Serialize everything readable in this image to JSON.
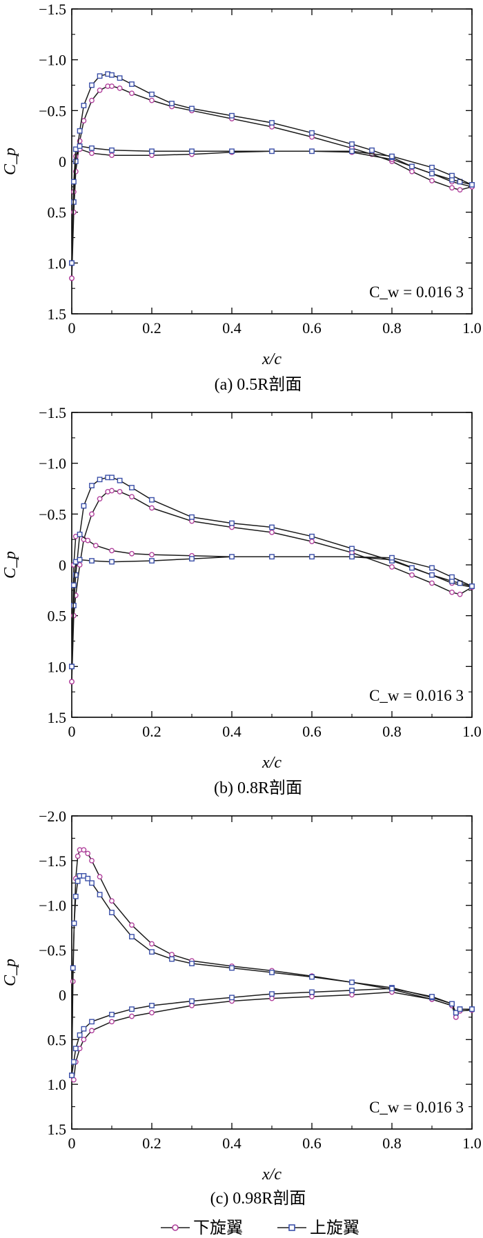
{
  "colors": {
    "lower_rotor": "#b0409c",
    "upper_rotor": "#3a4fa8",
    "line": "#1a1a1a",
    "axis": "#000000"
  },
  "chart_data": [
    {
      "type": "line",
      "caption": "(a) 0.5R剖面",
      "xlabel": "x/c",
      "ylabel": "C_p",
      "xlim": [
        0,
        1.0
      ],
      "ylim": [
        1.5,
        -1.5
      ],
      "y_inverted": true,
      "xticks": [
        "0",
        "0.2",
        "0.4",
        "0.6",
        "0.8",
        "1.0"
      ],
      "yticks": [
        "−1.5",
        "−1.0",
        "−0.5",
        "0",
        "0.5",
        "1.0",
        "1.5"
      ],
      "annotation": "C_w = 0.016 3",
      "series": [
        {
          "name": "下旋翼",
          "marker": "circle",
          "upper_surface": {
            "x": [
              0,
              0.005,
              0.01,
              0.02,
              0.03,
              0.05,
              0.07,
              0.09,
              0.1,
              0.12,
              0.15,
              0.2,
              0.25,
              0.3,
              0.4,
              0.5,
              0.6,
              0.7,
              0.75,
              0.8,
              0.85,
              0.9,
              0.95,
              0.97,
              1.0
            ],
            "y": [
              1.15,
              0.5,
              0.1,
              -0.2,
              -0.4,
              -0.6,
              -0.7,
              -0.74,
              -0.74,
              -0.72,
              -0.67,
              -0.6,
              -0.54,
              -0.5,
              -0.42,
              -0.34,
              -0.24,
              -0.13,
              -0.07,
              0.0,
              0.1,
              0.19,
              0.26,
              0.28,
              0.25
            ]
          },
          "lower_surface": {
            "x": [
              0,
              0.005,
              0.01,
              0.02,
              0.05,
              0.1,
              0.2,
              0.3,
              0.4,
              0.5,
              0.6,
              0.7,
              0.8,
              0.9,
              0.95,
              1.0
            ],
            "y": [
              1.15,
              0.3,
              -0.05,
              -0.12,
              -0.08,
              -0.06,
              -0.06,
              -0.07,
              -0.09,
              -0.1,
              -0.1,
              -0.09,
              -0.02,
              0.12,
              0.2,
              0.25
            ]
          }
        },
        {
          "name": "上旋翼",
          "marker": "square",
          "upper_surface": {
            "x": [
              0,
              0.005,
              0.01,
              0.02,
              0.03,
              0.05,
              0.07,
              0.09,
              0.1,
              0.12,
              0.15,
              0.2,
              0.25,
              0.3,
              0.4,
              0.5,
              0.6,
              0.7,
              0.75,
              0.8,
              0.85,
              0.9,
              0.95,
              0.97,
              1.0
            ],
            "y": [
              1.0,
              0.4,
              0.0,
              -0.3,
              -0.55,
              -0.75,
              -0.84,
              -0.86,
              -0.85,
              -0.82,
              -0.76,
              -0.66,
              -0.57,
              -0.52,
              -0.45,
              -0.38,
              -0.28,
              -0.17,
              -0.11,
              -0.04,
              0.05,
              0.12,
              0.18,
              0.2,
              0.23
            ]
          },
          "lower_surface": {
            "x": [
              0,
              0.005,
              0.01,
              0.02,
              0.05,
              0.1,
              0.2,
              0.3,
              0.4,
              0.5,
              0.6,
              0.7,
              0.8,
              0.9,
              0.95,
              1.0
            ],
            "y": [
              1.0,
              0.2,
              -0.12,
              -0.15,
              -0.13,
              -0.11,
              -0.1,
              -0.1,
              -0.1,
              -0.1,
              -0.1,
              -0.1,
              -0.05,
              0.06,
              0.14,
              0.23
            ]
          }
        }
      ]
    },
    {
      "type": "line",
      "caption": "(b) 0.8R剖面",
      "xlabel": "x/c",
      "ylabel": "C_p",
      "xlim": [
        0,
        1.0
      ],
      "ylim": [
        1.5,
        -1.5
      ],
      "y_inverted": true,
      "xticks": [
        "0",
        "0.2",
        "0.4",
        "0.6",
        "0.8",
        "1.0"
      ],
      "yticks": [
        "−1.5",
        "−1.0",
        "−0.5",
        "0",
        "0.5",
        "1.0",
        "1.5"
      ],
      "annotation": "C_w = 0.016 3",
      "series": [
        {
          "name": "下旋翼",
          "marker": "circle",
          "upper_surface": {
            "x": [
              0,
              0.005,
              0.01,
              0.02,
              0.03,
              0.05,
              0.07,
              0.09,
              0.1,
              0.12,
              0.15,
              0.2,
              0.3,
              0.4,
              0.5,
              0.6,
              0.7,
              0.8,
              0.85,
              0.9,
              0.95,
              0.97,
              1.0
            ],
            "y": [
              1.15,
              0.5,
              0.3,
              0.0,
              -0.25,
              -0.5,
              -0.65,
              -0.72,
              -0.73,
              -0.72,
              -0.67,
              -0.56,
              -0.43,
              -0.37,
              -0.32,
              -0.23,
              -0.12,
              0.02,
              0.1,
              0.18,
              0.27,
              0.29,
              0.22
            ]
          },
          "lower_surface": {
            "x": [
              0,
              0.005,
              0.01,
              0.02,
              0.04,
              0.06,
              0.1,
              0.15,
              0.2,
              0.3,
              0.4,
              0.5,
              0.6,
              0.7,
              0.8,
              0.9,
              0.95,
              1.0
            ],
            "y": [
              1.15,
              0.0,
              -0.28,
              -0.3,
              -0.24,
              -0.19,
              -0.14,
              -0.11,
              -0.1,
              -0.09,
              -0.08,
              -0.08,
              -0.08,
              -0.08,
              -0.05,
              0.1,
              0.18,
              0.22
            ]
          }
        },
        {
          "name": "上旋翼",
          "marker": "square",
          "upper_surface": {
            "x": [
              0,
              0.005,
              0.01,
              0.02,
              0.03,
              0.05,
              0.07,
              0.09,
              0.1,
              0.12,
              0.15,
              0.2,
              0.3,
              0.4,
              0.5,
              0.6,
              0.7,
              0.8,
              0.85,
              0.9,
              0.95,
              0.97,
              1.0
            ],
            "y": [
              1.0,
              0.4,
              0.1,
              -0.3,
              -0.58,
              -0.78,
              -0.84,
              -0.86,
              -0.86,
              -0.83,
              -0.76,
              -0.64,
              -0.47,
              -0.41,
              -0.37,
              -0.28,
              -0.16,
              -0.04,
              0.03,
              0.1,
              0.16,
              0.18,
              0.21
            ]
          },
          "lower_surface": {
            "x": [
              0,
              0.005,
              0.01,
              0.02,
              0.05,
              0.1,
              0.2,
              0.3,
              0.4,
              0.5,
              0.6,
              0.7,
              0.8,
              0.9,
              0.95,
              1.0
            ],
            "y": [
              1.0,
              0.2,
              -0.03,
              -0.05,
              -0.04,
              -0.03,
              -0.04,
              -0.06,
              -0.08,
              -0.08,
              -0.08,
              -0.08,
              -0.07,
              0.03,
              0.12,
              0.21
            ]
          }
        }
      ]
    },
    {
      "type": "line",
      "caption": "(c) 0.98R剖面",
      "xlabel": "x/c",
      "ylabel": "C_p",
      "xlim": [
        0,
        1.0
      ],
      "ylim": [
        1.5,
        -2.0
      ],
      "y_inverted": true,
      "xticks": [
        "0",
        "0.2",
        "0.4",
        "0.6",
        "0.8",
        "1.0"
      ],
      "yticks": [
        "−2.0",
        "−1.5",
        "−1.0",
        "−0.5",
        "0",
        "0.5",
        "1.0",
        "1.5"
      ],
      "annotation": "C_w = 0.016 3",
      "series": [
        {
          "name": "下旋翼",
          "marker": "circle",
          "upper_surface": {
            "x": [
              0,
              0.003,
              0.006,
              0.01,
              0.015,
              0.02,
              0.03,
              0.04,
              0.05,
              0.07,
              0.1,
              0.15,
              0.2,
              0.25,
              0.3,
              0.4,
              0.5,
              0.6,
              0.7,
              0.8,
              0.9,
              0.95,
              0.96,
              0.97,
              1.0
            ],
            "y": [
              0.9,
              -0.15,
              -0.8,
              -1.3,
              -1.55,
              -1.62,
              -1.62,
              -1.58,
              -1.5,
              -1.32,
              -1.05,
              -0.78,
              -0.57,
              -0.45,
              -0.38,
              -0.32,
              -0.27,
              -0.21,
              -0.14,
              -0.06,
              0.05,
              0.12,
              0.25,
              0.18,
              0.17
            ]
          },
          "lower_surface": {
            "x": [
              0,
              0.005,
              0.01,
              0.02,
              0.03,
              0.05,
              0.1,
              0.15,
              0.2,
              0.3,
              0.4,
              0.5,
              0.6,
              0.7,
              0.8,
              0.9,
              0.95,
              0.96,
              0.97,
              1.0
            ],
            "y": [
              0.9,
              0.95,
              0.75,
              0.6,
              0.5,
              0.4,
              0.3,
              0.24,
              0.2,
              0.12,
              0.07,
              0.04,
              0.02,
              0.0,
              -0.03,
              0.05,
              0.12,
              0.25,
              0.18,
              0.17
            ]
          }
        },
        {
          "name": "上旋翼",
          "marker": "square",
          "upper_surface": {
            "x": [
              0,
              0.003,
              0.006,
              0.01,
              0.015,
              0.02,
              0.03,
              0.04,
              0.05,
              0.07,
              0.1,
              0.15,
              0.2,
              0.25,
              0.3,
              0.4,
              0.5,
              0.6,
              0.7,
              0.8,
              0.9,
              0.95,
              0.96,
              0.97,
              1.0
            ],
            "y": [
              0.9,
              -0.3,
              -0.8,
              -1.1,
              -1.27,
              -1.33,
              -1.33,
              -1.3,
              -1.25,
              -1.12,
              -0.92,
              -0.65,
              -0.48,
              -0.4,
              -0.35,
              -0.3,
              -0.25,
              -0.2,
              -0.14,
              -0.08,
              0.03,
              0.1,
              0.2,
              0.16,
              0.16
            ]
          },
          "lower_surface": {
            "x": [
              0,
              0.005,
              0.01,
              0.02,
              0.03,
              0.05,
              0.1,
              0.15,
              0.2,
              0.3,
              0.4,
              0.5,
              0.6,
              0.7,
              0.8,
              0.9,
              0.95,
              0.96,
              0.97,
              1.0
            ],
            "y": [
              0.9,
              0.75,
              0.6,
              0.45,
              0.38,
              0.3,
              0.22,
              0.16,
              0.12,
              0.07,
              0.03,
              -0.01,
              -0.03,
              -0.05,
              -0.07,
              0.02,
              0.1,
              0.2,
              0.16,
              0.16
            ]
          }
        }
      ]
    }
  ],
  "legend": {
    "items": [
      {
        "label": "下旋翼",
        "marker": "circle"
      },
      {
        "label": "上旋翼",
        "marker": "square"
      }
    ]
  }
}
